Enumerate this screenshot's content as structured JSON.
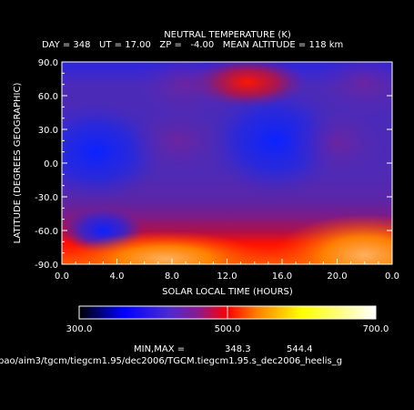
{
  "chart_data": {
    "type": "heatmap",
    "title": "NEUTRAL TEMPERATURE (K)",
    "subtitle": "DAY = 348   UT = 17.00   ZP =   -4.00   MEAN ALTITUDE = 118 km",
    "xlabel": "SOLAR LOCAL TIME (HOURS)",
    "ylabel": "LATITUDE (DEGREES GEOGRAPHIC)",
    "xlim": [
      0.0,
      24.0
    ],
    "ylim": [
      -90.0,
      90.0
    ],
    "x_tick_labels": [
      "0.0",
      "4.0",
      "8.0",
      "12.0",
      "16.0",
      "20.0",
      "0.0"
    ],
    "y_tick_labels": [
      "-90.0",
      "-60.0",
      "-30.0",
      "0.0",
      "30.0",
      "60.0",
      "90.0"
    ],
    "colorbar": {
      "range": [
        300.0,
        700.0
      ],
      "tick_labels": [
        "300.0",
        "500.0",
        "700.0"
      ],
      "colors": [
        "#000000",
        "#0000ff",
        "#5a22b0",
        "#9a1080",
        "#ff0000",
        "#ff8a00",
        "#ffff00",
        "#ffffff"
      ]
    },
    "min_max_label": "MIN,MAX =",
    "min": "348.3",
    "max": "544.4",
    "features": [
      {
        "x": 2.5,
        "y": 10,
        "value": 360
      },
      {
        "x": 15.5,
        "y": 20,
        "value": 365
      },
      {
        "x": 3.0,
        "y": -60,
        "value": 360
      },
      {
        "x": 13.5,
        "y": 72,
        "value": 470
      },
      {
        "x": 22.0,
        "y": -82,
        "value": 544
      },
      {
        "x": 7.5,
        "y": -85,
        "value": 500
      }
    ],
    "grid": false
  },
  "file_path": "pao/aim3/tgcm/tiegcm1.95/dec2006/TGCM.tiegcm1.95.s_dec2006_heelis_g"
}
